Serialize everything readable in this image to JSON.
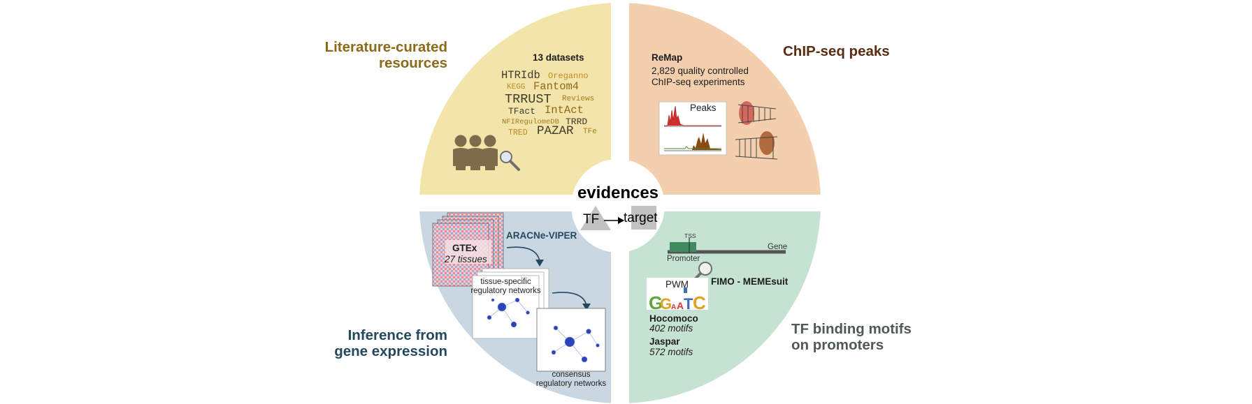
{
  "center": {
    "title": "evidences",
    "tf": "TF",
    "target": "target"
  },
  "literature": {
    "title_line1": "Literature-curated",
    "title_line2": "resources",
    "datasets_label": "13 datasets",
    "resources": [
      "HTRIdb",
      "Oreganno",
      "KEGG",
      "Fantom4",
      "TRRUST",
      "Reviews",
      "TFact",
      "IntAct",
      "NFIRegulomeDB",
      "TRRD",
      "TRED",
      "PAZAR",
      "TFe"
    ]
  },
  "chipseq": {
    "title": "ChIP-seq peaks",
    "source": "ReMap",
    "desc_line1": "2,829 quality controlled",
    "desc_line2": "ChIP-seq experiments",
    "peaks_label": "Peaks"
  },
  "inference": {
    "title_line1": "Inference from",
    "title_line2": "gene expression",
    "gtex": "GTEx",
    "gtex_tissues": "27 tissues",
    "method": "ARACNe-VIPER",
    "tissue_net_line1": "tissue-specific",
    "tissue_net_line2": "regulatory networks",
    "consensus_line1": "consensus",
    "consensus_line2": "regulatory networks"
  },
  "motifs": {
    "title_line1": "TF binding motifs",
    "title_line2": "on promoters",
    "tss": "TSS",
    "gene": "Gene",
    "promoter": "Promoter",
    "pwm": "PWM",
    "tool": "FIMO - MEMEsuit",
    "hocomoco": "Hocomoco",
    "hocomoco_count": "402 motifs",
    "jaspar": "Jaspar",
    "jaspar_count": "572 motifs"
  },
  "colors": {
    "literature_bg": "#f3e4aa",
    "chipseq_bg": "#f3cfad",
    "inference_bg": "#c8d7e1",
    "motifs_bg": "#c6e2d3"
  }
}
